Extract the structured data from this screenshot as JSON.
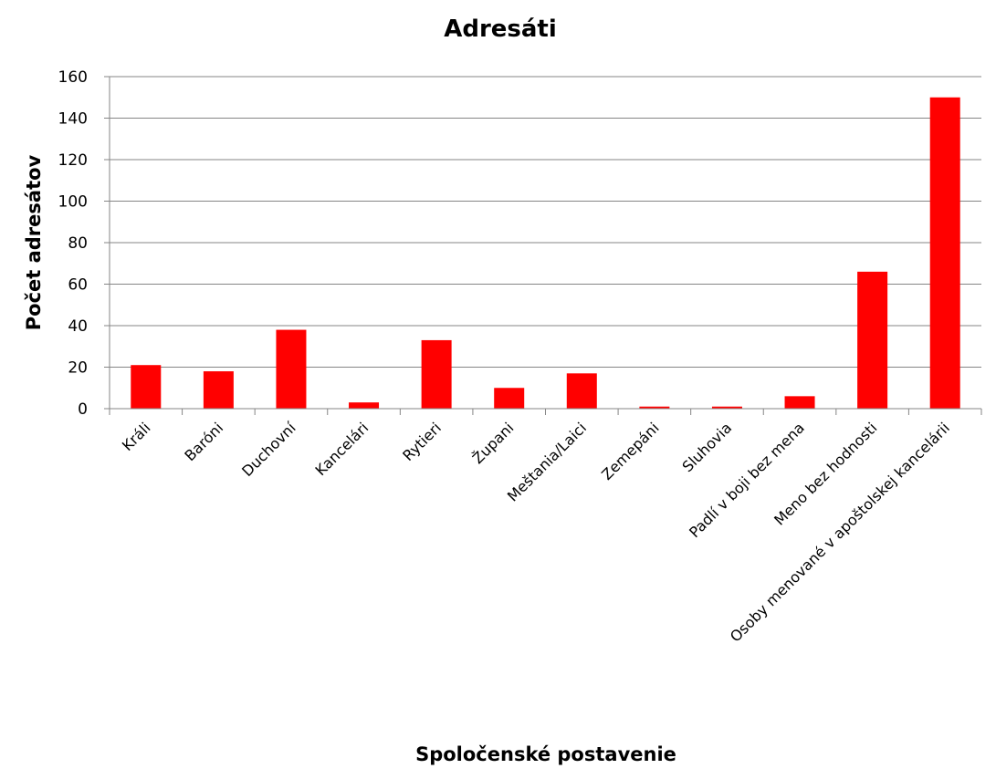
{
  "chart_data": {
    "type": "bar",
    "title": "Adresáti",
    "xlabel": "Spoločenské postavenie",
    "ylabel": "Počet adresátov",
    "categories": [
      "Králi",
      "Baróni",
      "Duchovní",
      "Kancelári",
      "Rytieri",
      "Župani",
      "Meštania/Laici",
      "Zemepáni",
      "Sluhovia",
      "Padlí v boji bez mena",
      "Meno bez hodnosti",
      "Osoby menované v apoštolskej kancelárii"
    ],
    "values": [
      21,
      18,
      38,
      3,
      33,
      10,
      17,
      1,
      1,
      6,
      66,
      150
    ],
    "ylim": [
      0,
      160
    ],
    "yticks": [
      0,
      20,
      40,
      60,
      80,
      100,
      120,
      140,
      160
    ],
    "grid": true,
    "legend": "none",
    "colors": {
      "bar": "#ff0000",
      "grid": "#868686",
      "axis": "#868686"
    }
  }
}
